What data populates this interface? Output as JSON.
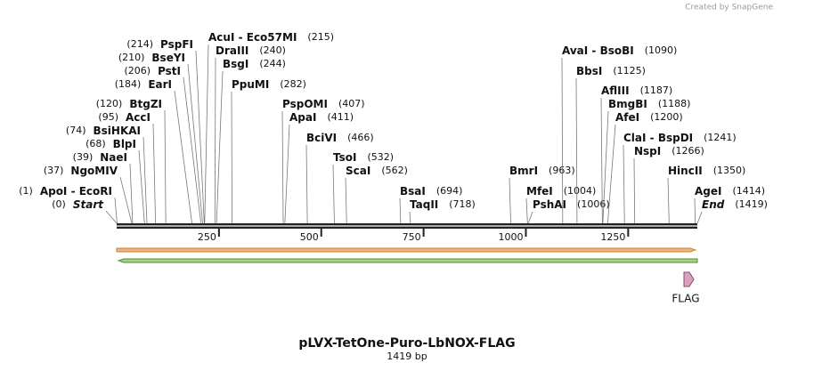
{
  "credit": "Created by SnapGene",
  "title": "pLVX-TetOne-Puro-LbNOX-FLAG",
  "sequence_length": {
    "value": 1419,
    "label": "1419 bp"
  },
  "ruler_ticks": [
    250,
    500,
    750,
    1000,
    1250
  ],
  "sites": [
    {
      "name": "ApoI - EcoRI",
      "position": 1,
      "label": "(1)"
    },
    {
      "name": "Start",
      "position": 0,
      "label": "(0)"
    },
    {
      "name": "NgoMIV",
      "position": 37,
      "label": "(37)"
    },
    {
      "name": "NaeI",
      "position": 39,
      "label": "(39)"
    },
    {
      "name": "BlpI",
      "position": 68,
      "label": "(68)"
    },
    {
      "name": "BsiHKAI",
      "position": 74,
      "label": "(74)"
    },
    {
      "name": "AccI",
      "position": 95,
      "label": "(95)"
    },
    {
      "name": "BtgZI",
      "position": 120,
      "label": "(120)"
    },
    {
      "name": "EarI",
      "position": 184,
      "label": "(184)"
    },
    {
      "name": "PstI",
      "position": 206,
      "label": "(206)"
    },
    {
      "name": "BseYI",
      "position": 210,
      "label": "(210)"
    },
    {
      "name": "PspFI",
      "position": 214,
      "label": "(214)"
    },
    {
      "name": "AcuI - Eco57MI",
      "position": 215,
      "label": "(215)"
    },
    {
      "name": "DraIII",
      "position": 240,
      "label": "(240)"
    },
    {
      "name": "BsgI",
      "position": 244,
      "label": "(244)"
    },
    {
      "name": "PpuMI",
      "position": 282,
      "label": "(282)"
    },
    {
      "name": "PspOMI",
      "position": 407,
      "label": "(407)"
    },
    {
      "name": "ApaI",
      "position": 411,
      "label": "(411)"
    },
    {
      "name": "BciVI",
      "position": 466,
      "label": "(466)"
    },
    {
      "name": "TsoI",
      "position": 532,
      "label": "(532)"
    },
    {
      "name": "ScaI",
      "position": 562,
      "label": "(562)"
    },
    {
      "name": "BsaI",
      "position": 694,
      "label": "(694)"
    },
    {
      "name": "TaqII",
      "position": 718,
      "label": "(718)"
    },
    {
      "name": "BmrI",
      "position": 963,
      "label": "(963)"
    },
    {
      "name": "MfeI",
      "position": 1004,
      "label": "(1004)"
    },
    {
      "name": "PshAI",
      "position": 1006,
      "label": "(1006)"
    },
    {
      "name": "AvaI - BsoBI",
      "position": 1090,
      "label": "(1090)"
    },
    {
      "name": "BbsI",
      "position": 1125,
      "label": "(1125)"
    },
    {
      "name": "AflIII",
      "position": 1187,
      "label": "(1187)"
    },
    {
      "name": "BmgBI",
      "position": 1188,
      "label": "(1188)"
    },
    {
      "name": "AfeI",
      "position": 1200,
      "label": "(1200)"
    },
    {
      "name": "ClaI - BspDI",
      "position": 1241,
      "label": "(1241)"
    },
    {
      "name": "NspI",
      "position": 1266,
      "label": "(1266)"
    },
    {
      "name": "HincII",
      "position": 1350,
      "label": "(1350)"
    },
    {
      "name": "AgeI",
      "position": 1414,
      "label": "(1414)"
    },
    {
      "name": "End",
      "position": 1419,
      "label": "(1419)"
    }
  ],
  "features": [
    {
      "label": "FLAG"
    }
  ]
}
